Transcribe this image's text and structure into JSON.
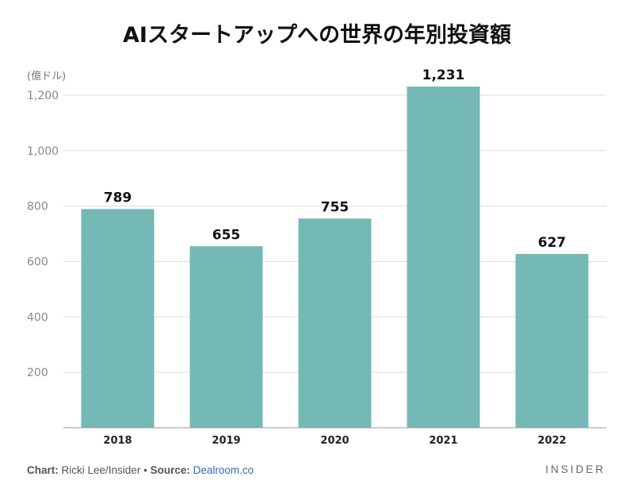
{
  "chart_data": {
    "type": "bar",
    "title": "AIスタートアップへの世界の年別投資額",
    "unit_label": "(億ドル)",
    "categories": [
      "2018",
      "2019",
      "2020",
      "2021",
      "2022"
    ],
    "values": [
      789,
      655,
      755,
      1231,
      627
    ],
    "value_labels": [
      "789",
      "655",
      "755",
      "1,231",
      "627"
    ],
    "ylim": [
      0,
      1300
    ],
    "yticks": [
      200,
      400,
      600,
      800,
      1000,
      1200
    ],
    "ytick_labels": [
      "200",
      "400",
      "600",
      "800",
      "1,000",
      "1,200"
    ],
    "grid": true,
    "legend": "none",
    "bar_color": "#74b9b5"
  },
  "footer": {
    "chart_label": "Chart:",
    "chart_credit": "Ricki Lee/Insider",
    "bullet": "•",
    "source_label": "Source:",
    "source_name": "Dealroom.co",
    "brand": "INSIDER"
  }
}
